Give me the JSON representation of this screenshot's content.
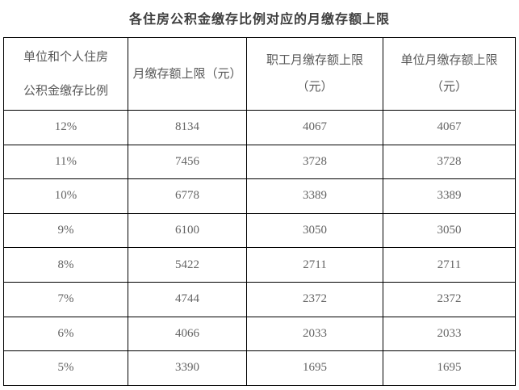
{
  "title": "各住房公积金缴存比例对应的月缴存额上限",
  "table": {
    "headers": [
      {
        "line1": "单位和个人住房",
        "line2": "公积金缴存比例"
      },
      {
        "line1": "月缴存额上限（元）"
      },
      {
        "line1": "职工月缴存额上限",
        "line2": "（元）"
      },
      {
        "line1": "单位月缴存额上限",
        "line2": "（元）"
      }
    ],
    "rows": [
      [
        "12%",
        "8134",
        "4067",
        "4067"
      ],
      [
        "11%",
        "7456",
        "3728",
        "3728"
      ],
      [
        "10%",
        "6778",
        "3389",
        "3389"
      ],
      [
        "9%",
        "6100",
        "3050",
        "3050"
      ],
      [
        "8%",
        "5422",
        "2711",
        "2711"
      ],
      [
        "7%",
        "4744",
        "2372",
        "2372"
      ],
      [
        "6%",
        "4066",
        "2033",
        "2033"
      ],
      [
        "5%",
        "3390",
        "1695",
        "1695"
      ]
    ]
  },
  "chart_data": {
    "type": "table",
    "title": "各住房公积金缴存比例对应的月缴存额上限",
    "columns": [
      "单位和个人住房公积金缴存比例",
      "月缴存额上限（元）",
      "职工月缴存额上限（元）",
      "单位月缴存额上限（元）"
    ],
    "rows": [
      [
        "12%",
        8134,
        4067,
        4067
      ],
      [
        "11%",
        7456,
        3728,
        3728
      ],
      [
        "10%",
        6778,
        3389,
        3389
      ],
      [
        "9%",
        6100,
        3050,
        3050
      ],
      [
        "8%",
        5422,
        2711,
        2711
      ],
      [
        "7%",
        4744,
        2372,
        2372
      ],
      [
        "6%",
        4066,
        2033,
        2033
      ],
      [
        "5%",
        3390,
        1695,
        1695
      ]
    ]
  },
  "colors": {
    "background": "#ffffff",
    "border": "#000000",
    "title_text": "#3f3f3f",
    "header_text": "#595959",
    "data_text": "#646464"
  }
}
